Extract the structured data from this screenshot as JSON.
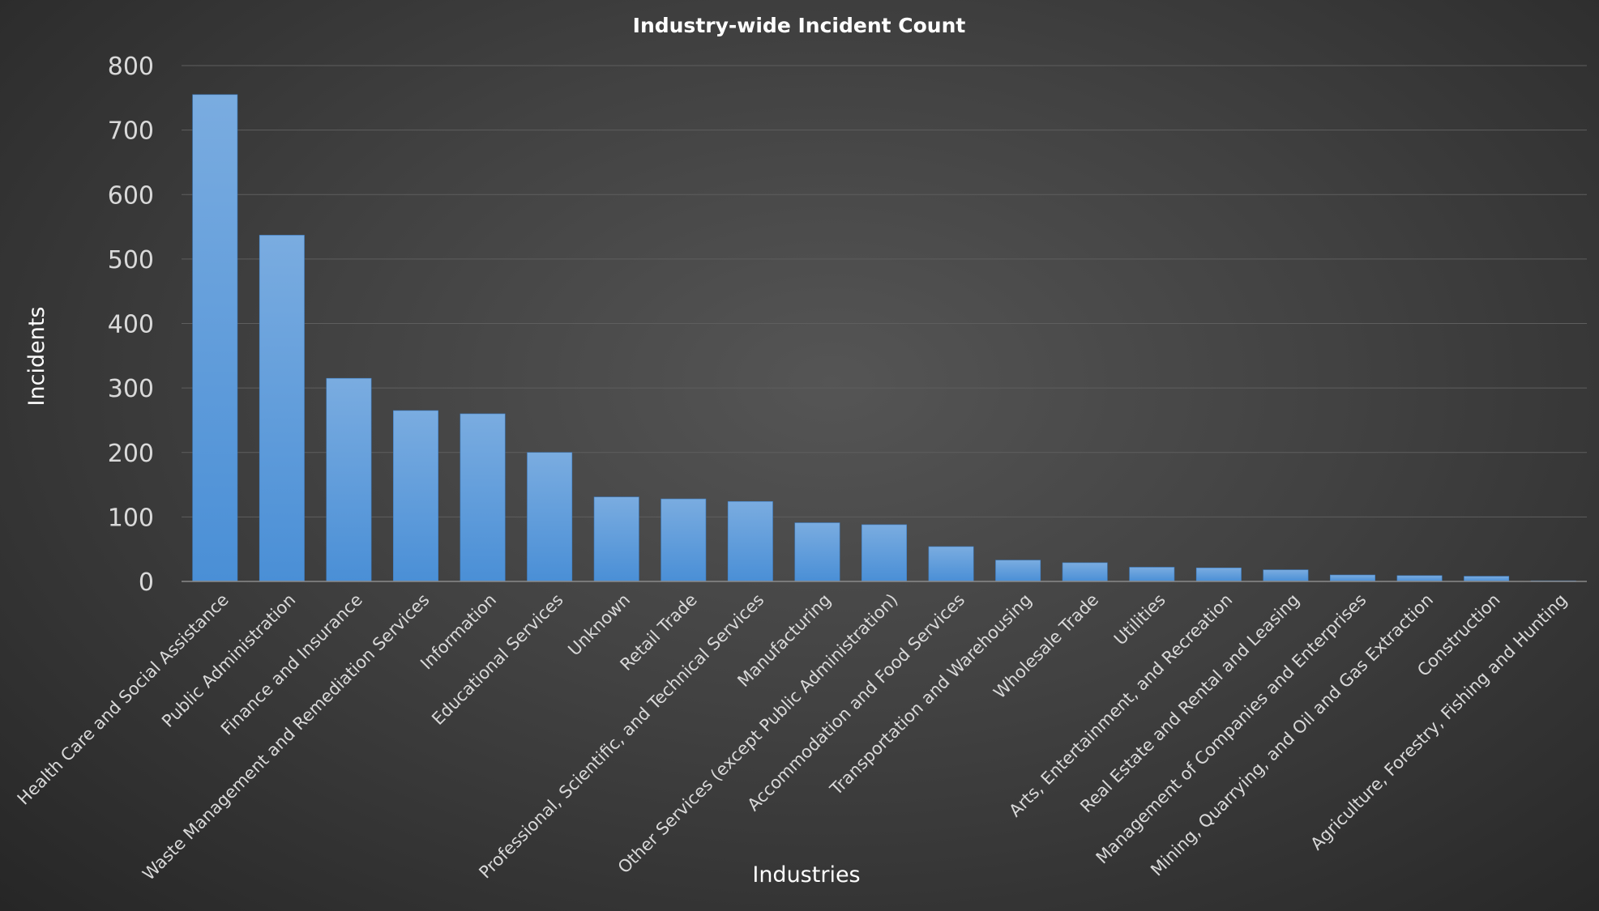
{
  "chart_data": {
    "type": "bar",
    "title": "Industry-wide Incident Count",
    "xlabel": "Industries",
    "ylabel": "Incidents",
    "ylim": [
      0,
      800
    ],
    "yticks": [
      0,
      100,
      200,
      300,
      400,
      500,
      600,
      700,
      800
    ],
    "grid": true,
    "legend": "none",
    "bar_color": "#5b9bd5",
    "categories": [
      "Health Care and Social Assistance",
      "Public Administration",
      "Finance and Insurance",
      "Waste Management and Remediation Services",
      "Information",
      "Educational Services",
      "Unknown",
      "Retail Trade",
      "Professional, Scientific, and Technical Services",
      "Manufacturing",
      "Other Services (except Public Administration)",
      "Accommodation and Food Services",
      "Transportation and Warehousing",
      "Wholesale Trade",
      "Utilities",
      "Arts, Entertainment, and Recreation",
      "Real Estate and Rental and Leasing",
      "Management of Companies and Enterprises",
      "Mining, Quarrying, and Oil and Gas Extraction",
      "Construction",
      "Agriculture, Forestry, Fishing and Hunting"
    ],
    "values": [
      755,
      537,
      315,
      265,
      260,
      200,
      131,
      128,
      124,
      91,
      88,
      54,
      33,
      29,
      22,
      21,
      18,
      10,
      9,
      8,
      1
    ]
  }
}
